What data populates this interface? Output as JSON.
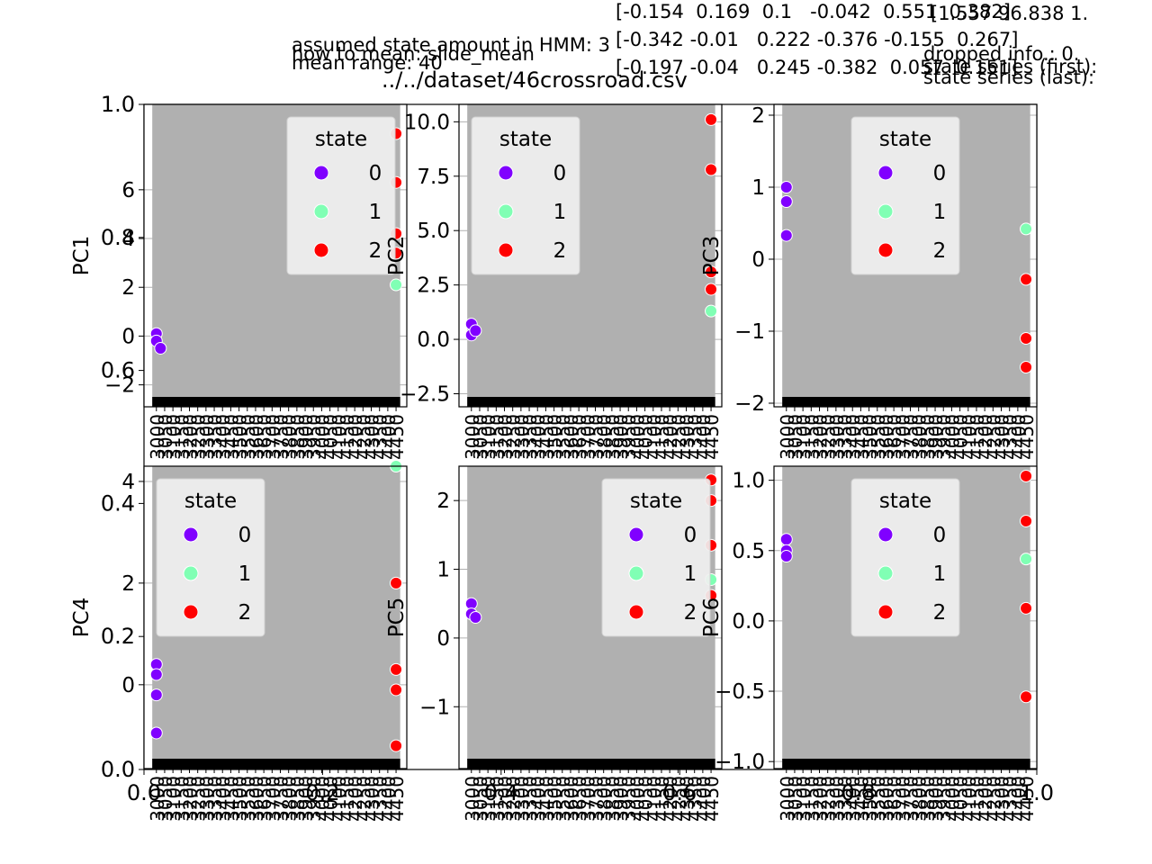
{
  "figure": {
    "title": "../../dataset/46crossroad.csv",
    "header_lines": [
      "assumed state amount in HMM: 3",
      "how to mean: slide_mean",
      "mean range: 40"
    ],
    "matrix_rows": [
      "[-0.154  0.169  0.1   -0.042  0.551  0.382]",
      "[-0.342 -0.01   0.222 -0.376 -0.155  0.267]",
      "[-0.197 -0.04   0.245 -0.382  0.057  0.151]"
    ],
    "right_lines": [
      "[1.557 96.838 1.",
      "dropped info.: 0.",
      "state series (first):",
      "state series (last):"
    ]
  },
  "chart_data": {
    "type": "scatter",
    "hue_label": "state",
    "legend": {
      "title": "state",
      "entries": [
        "0",
        "1",
        "2"
      ]
    },
    "colors": {
      "0": "#8000ff",
      "1": "#80ffb4",
      "2": "#ff0000",
      "background": "#b0b0b0",
      "bars": "#000000"
    },
    "outer_axis": {
      "xlim": [
        0.0,
        1.0
      ],
      "ylim": [
        0.0,
        1.0
      ],
      "x_ticks": [
        "0.0",
        "0.2",
        "0.4",
        "0.6",
        "0.8",
        "1.0"
      ],
      "y_ticks": [
        "0.0",
        "0.2",
        "0.4",
        "0.6",
        "0.8",
        "1.0"
      ]
    },
    "panels": [
      {
        "ylabel": "PC1",
        "ylim": [
          -2.9,
          9.5
        ],
        "yticks": [
          -2,
          0,
          2,
          4,
          6
        ],
        "yticklabels": [
          "−2",
          "0",
          "2",
          "4",
          "6"
        ],
        "legend_pos": "upper-right",
        "points": [
          {
            "x": 0,
            "y": 0.1,
            "s": 0
          },
          {
            "x": 0,
            "y": -0.2,
            "s": 0
          },
          {
            "x": 0.5,
            "y": -0.5,
            "s": 0
          },
          {
            "x": 29,
            "y": 2.1,
            "s": 1
          },
          {
            "x": 29,
            "y": 8.3,
            "s": 2
          },
          {
            "x": 29,
            "y": 6.3,
            "s": 2
          },
          {
            "x": 29,
            "y": 4.2,
            "s": 2
          },
          {
            "x": 29,
            "y": 3.4,
            "s": 2
          }
        ]
      },
      {
        "ylabel": "PC2",
        "ylim": [
          -3.1,
          10.8
        ],
        "yticks": [
          -2.5,
          0.0,
          2.5,
          5.0,
          7.5,
          10.0
        ],
        "yticklabels": [
          "−2.5",
          "0.0",
          "2.5",
          "5.0",
          "7.5",
          "10.0"
        ],
        "legend_pos": "upper-left",
        "points": [
          {
            "x": 0,
            "y": 0.7,
            "s": 0
          },
          {
            "x": 0,
            "y": 0.2,
            "s": 0
          },
          {
            "x": 0.5,
            "y": 0.4,
            "s": 0
          },
          {
            "x": 29,
            "y": 1.3,
            "s": 1
          },
          {
            "x": 29,
            "y": 10.1,
            "s": 2
          },
          {
            "x": 29,
            "y": 7.8,
            "s": 2
          },
          {
            "x": 29,
            "y": 3.1,
            "s": 2
          },
          {
            "x": 29,
            "y": 2.3,
            "s": 2
          }
        ]
      },
      {
        "ylabel": "PC3",
        "ylim": [
          -2.05,
          2.15
        ],
        "yticks": [
          -2,
          -1,
          0,
          1,
          2
        ],
        "yticklabels": [
          "−2",
          "−1",
          "0",
          "1",
          "2"
        ],
        "legend_pos": "upper-center",
        "points": [
          {
            "x": 0,
            "y": 1.0,
            "s": 0
          },
          {
            "x": 0,
            "y": 0.8,
            "s": 0
          },
          {
            "x": 0,
            "y": 0.33,
            "s": 0
          },
          {
            "x": 29,
            "y": 0.42,
            "s": 1
          },
          {
            "x": 29,
            "y": -0.28,
            "s": 2
          },
          {
            "x": 29,
            "y": -1.1,
            "s": 2
          },
          {
            "x": 29,
            "y": -1.5,
            "s": 2
          }
        ]
      },
      {
        "ylabel": "PC4",
        "ylim": [
          -1.65,
          4.3
        ],
        "yticks": [
          0,
          2,
          4
        ],
        "yticklabels": [
          "0",
          "2",
          "4"
        ],
        "legend_pos": "upper-left",
        "points": [
          {
            "x": 0,
            "y": 0.4,
            "s": 0
          },
          {
            "x": 0,
            "y": 0.2,
            "s": 0
          },
          {
            "x": 0,
            "y": -0.2,
            "s": 0
          },
          {
            "x": 0,
            "y": -0.95,
            "s": 0
          },
          {
            "x": 29,
            "y": 4.3,
            "s": 1
          },
          {
            "x": 29,
            "y": 2.0,
            "s": 2
          },
          {
            "x": 29,
            "y": 0.3,
            "s": 2
          },
          {
            "x": 29,
            "y": -0.1,
            "s": 2
          },
          {
            "x": 29,
            "y": -1.2,
            "s": 2
          }
        ]
      },
      {
        "ylabel": "PC5",
        "ylim": [
          -1.9,
          2.5
        ],
        "yticks": [
          -1,
          0,
          1,
          2
        ],
        "yticklabels": [
          "−1",
          "0",
          "1",
          "2"
        ],
        "legend_pos": "upper-right",
        "points": [
          {
            "x": 0,
            "y": 0.5,
            "s": 0
          },
          {
            "x": 0,
            "y": 0.35,
            "s": 0
          },
          {
            "x": 0.5,
            "y": 0.3,
            "s": 0
          },
          {
            "x": 29,
            "y": 0.85,
            "s": 1
          },
          {
            "x": 29,
            "y": 2.3,
            "s": 2
          },
          {
            "x": 29,
            "y": 2.0,
            "s": 2
          },
          {
            "x": 29,
            "y": 1.35,
            "s": 2
          },
          {
            "x": 29,
            "y": 0.62,
            "s": 2
          }
        ]
      },
      {
        "ylabel": "PC6",
        "ylim": [
          -1.05,
          1.1
        ],
        "yticks": [
          -1.0,
          -0.5,
          0.0,
          0.5,
          1.0
        ],
        "yticklabels": [
          "−1.0",
          "−0.5",
          "0.0",
          "0.5",
          "1.0"
        ],
        "legend_pos": "upper-center",
        "points": [
          {
            "x": 0,
            "y": 0.58,
            "s": 0
          },
          {
            "x": 0,
            "y": 0.5,
            "s": 0
          },
          {
            "x": 0,
            "y": 0.46,
            "s": 0
          },
          {
            "x": 29,
            "y": 0.44,
            "s": 1
          },
          {
            "x": 29,
            "y": 1.03,
            "s": 2
          },
          {
            "x": 29,
            "y": 0.71,
            "s": 2
          },
          {
            "x": 29,
            "y": 0.09,
            "s": 2
          },
          {
            "x": 29,
            "y": -0.54,
            "s": 2
          }
        ]
      }
    ]
  }
}
